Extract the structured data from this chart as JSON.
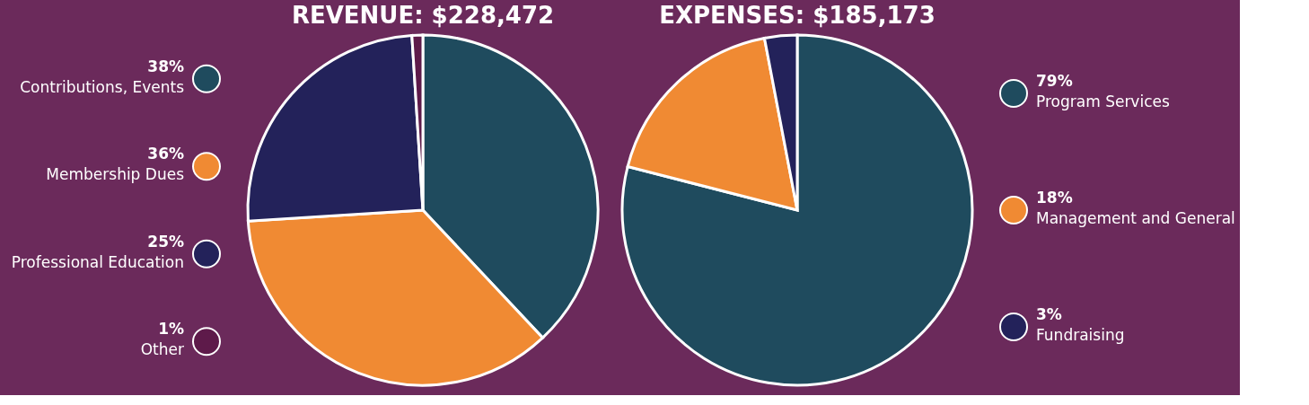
{
  "chart_data": [
    {
      "type": "pie",
      "title": "REVENUE: $228,472",
      "categories": [
        "Contributions, Events",
        "Membership Dues",
        "Professional Education",
        "Other"
      ],
      "values": [
        38,
        36,
        25,
        1
      ],
      "value_labels": [
        "38%",
        "36%",
        "25%",
        "1%"
      ],
      "colors": [
        "#1f4b5e",
        "#f08a33",
        "#23225a",
        "#5e1a4a"
      ],
      "legend": "left"
    },
    {
      "type": "pie",
      "title": "EXPENSES: $185,173",
      "categories": [
        "Program Services",
        "Management and General",
        "Fundraising"
      ],
      "values": [
        79,
        18,
        3
      ],
      "value_labels": [
        "79%",
        "18%",
        "3%"
      ],
      "colors": [
        "#1f4b5e",
        "#f08a33",
        "#23225a"
      ],
      "legend": "right"
    }
  ]
}
